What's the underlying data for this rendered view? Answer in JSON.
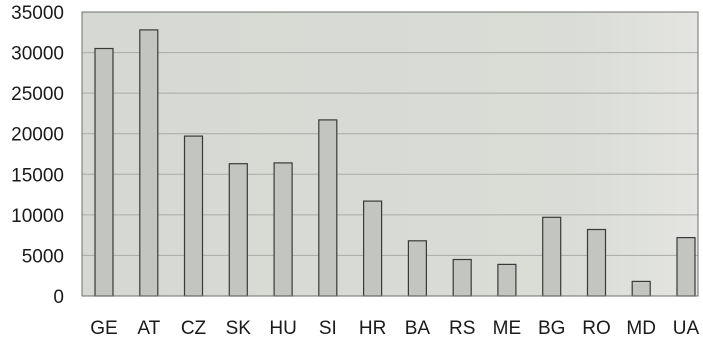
{
  "chart_data": {
    "type": "bar",
    "categories": [
      "GE",
      "AT",
      "CZ",
      "SK",
      "HU",
      "SI",
      "HR",
      "BA",
      "RS",
      "ME",
      "BG",
      "RO",
      "MD",
      "UA"
    ],
    "values": [
      30500,
      32800,
      19700,
      16300,
      16400,
      21700,
      11700,
      6800,
      4500,
      3900,
      9700,
      8200,
      1800,
      7200
    ],
    "title": "",
    "xlabel": "",
    "ylabel": "",
    "ylim": [
      0,
      35000
    ],
    "yticks": [
      0,
      5000,
      10000,
      15000,
      20000,
      25000,
      30000,
      35000
    ],
    "grid": true,
    "legend": "none",
    "colors": {
      "bar_fill": "#c2c5c0",
      "bar_stroke": "#3a3a3a",
      "plot_bg": "#d9dbd6",
      "grid": "#a9aba6",
      "frame": "#6f716d"
    }
  }
}
